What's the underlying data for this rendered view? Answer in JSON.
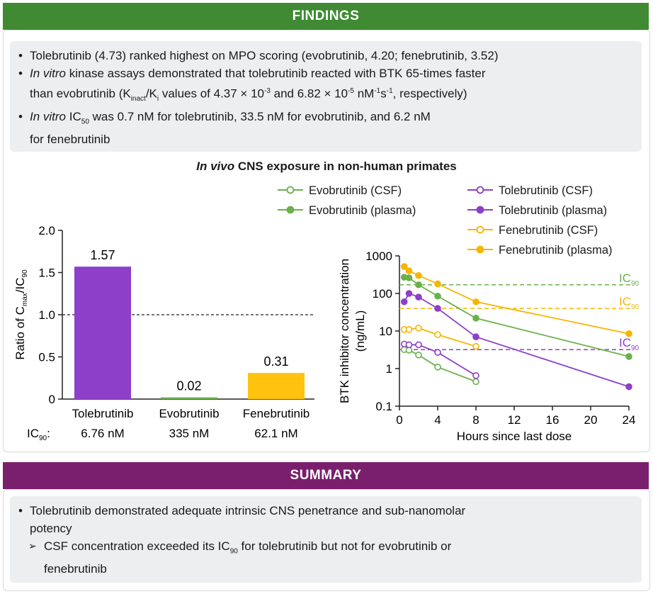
{
  "findings": {
    "title": "FINDINGS",
    "bullets": [
      {
        "text": "Tolebrutinib (4.73) ranked highest on MPO scoring (evobrutinib, 4.20; fenebrutinib, 3.52)"
      },
      {
        "em": "In vitro",
        "pre": " kinase assays demonstrated that tolebrutinib reacted with BTK 65-times faster",
        "line2": "than evobrutinib (K",
        "sub1": "inact",
        "mid": "/K",
        "sub2": "i",
        "post": " values of 4.37 × 10",
        "sup1": "-3",
        "and": " and 6.82 × 10",
        "sup2": "-5",
        "unit": " nM",
        "sup3": "-1",
        "unit2": "s",
        "sup4": "-1",
        "end": ", respectively)"
      },
      {
        "em": "In vitro",
        "pre": " IC",
        "sub": "50",
        "post": " was 0.7 nM for tolebrutinib, 33.5 nM for evobrutinib, and 6.2 nM",
        "line2": "for fenebrutinib"
      }
    ]
  },
  "chart_title": {
    "em": "In vivo",
    "rest": " CNS exposure in non-human primates"
  },
  "summary": {
    "title": "SUMMARY",
    "bullet": "Tolebrutinib demonstrated adequate intrinsic CNS penetrance and sub-nanomolar",
    "bullet_line2": "potency",
    "sub_pre": "CSF concentration exceeded its IC",
    "sub_sub": "90",
    "sub_post": " for tolebrutinib but not for evobrutinib or",
    "sub_line2": "fenebrutinib"
  },
  "colors": {
    "evo": "#6ab04c",
    "tole": "#8e3fc9",
    "fene": "#f7b500",
    "bar_tole": "#8e3fc9",
    "bar_fene": "#ffc20e"
  },
  "chart_data": [
    {
      "type": "bar",
      "categories": [
        "Tolebrutinib",
        "Evobrutinib",
        "Fenebrutinib"
      ],
      "values": [
        1.57,
        0.02,
        0.31
      ],
      "value_labels": [
        "1.57",
        "0.02",
        "0.31"
      ],
      "ic90_prefix": "IC",
      "ic90_sub": "90",
      "ic90_suffix": ":",
      "ic90_values": [
        "6.76 nM",
        "335 nM",
        "62.1 nM"
      ],
      "ylabel_pre": "Ratio of C",
      "ylabel_sub1": "max",
      "ylabel_mid": "/IC",
      "ylabel_sub2": "90",
      "ylim": [
        0,
        2.0
      ],
      "yticks": [
        "0",
        "0.5",
        "1.0",
        "1.5",
        "2.0"
      ],
      "yticks_values": [
        0,
        0.5,
        1.0,
        1.5,
        2.0
      ],
      "reference_line": 1.0
    },
    {
      "type": "line",
      "ylabel_line1": "BTK inhibitor concentration",
      "ylabel_line2": "(ng/mL)",
      "xlabel": "Hours since last dose",
      "xticks": [
        0,
        4,
        8,
        12,
        16,
        20,
        24
      ],
      "yscale": "log",
      "ylim": [
        0.1,
        1000
      ],
      "yticks": [
        "0.1",
        "1",
        "10",
        "100",
        "1000"
      ],
      "yticks_values": [
        0.1,
        1,
        10,
        100,
        1000
      ],
      "series": [
        {
          "name": "Evobrutinib (CSF)",
          "key": "evo",
          "filled": false,
          "x": [
            0.5,
            1,
            2,
            4,
            8
          ],
          "y": [
            3.2,
            3.1,
            2.3,
            1.1,
            0.45
          ]
        },
        {
          "name": "Evobrutinib (plasma)",
          "key": "evo",
          "filled": true,
          "x": [
            0.5,
            1,
            2,
            4,
            8,
            24
          ],
          "y": [
            270,
            260,
            170,
            85,
            22,
            2.1
          ]
        },
        {
          "name": "Tolebrutinib (CSF)",
          "key": "tole",
          "filled": false,
          "x": [
            0.5,
            1,
            2,
            4,
            8
          ],
          "y": [
            4.5,
            4.3,
            4.3,
            2.7,
            0.65
          ]
        },
        {
          "name": "Tolebrutinib (plasma)",
          "key": "tole",
          "filled": true,
          "x": [
            0.5,
            1,
            2,
            4,
            8,
            24
          ],
          "y": [
            60,
            100,
            80,
            40,
            7,
            0.33
          ]
        },
        {
          "name": "Fenebrutinib (CSF)",
          "key": "fene",
          "filled": false,
          "x": [
            0.5,
            1,
            2,
            4,
            8
          ],
          "y": [
            11,
            11,
            12,
            8,
            3.9
          ]
        },
        {
          "name": "Fenebrutinib (plasma)",
          "key": "fene",
          "filled": true,
          "x": [
            0.5,
            1,
            2,
            4,
            8,
            24
          ],
          "y": [
            520,
            400,
            300,
            180,
            60,
            8.5
          ]
        }
      ],
      "ic90_lines": [
        {
          "key": "evo",
          "value": 170,
          "label": "IC",
          "sub": "90"
        },
        {
          "key": "fene",
          "value": 40,
          "label": "IC",
          "sub": "90"
        },
        {
          "key": "tole",
          "value": 3.2,
          "label": "IC",
          "sub": "90"
        }
      ]
    }
  ]
}
